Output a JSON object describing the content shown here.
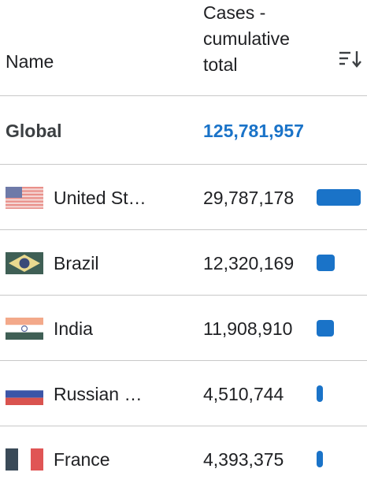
{
  "header": {
    "name_label": "Name",
    "cases_label_line1": "Cases -",
    "cases_label_line2": "cumulative",
    "cases_label_line3": "total",
    "sort_icon": "sort-descending-icon"
  },
  "global": {
    "label": "Global",
    "value": "125,781,957"
  },
  "accent_color": "#1a73c8",
  "rows": [
    {
      "name": "United St…",
      "value": "29,787,178",
      "raw": 29787178,
      "flag_icon": "flag-united-states-icon"
    },
    {
      "name": "Brazil",
      "value": "12,320,169",
      "raw": 12320169,
      "flag_icon": "flag-brazil-icon"
    },
    {
      "name": "India",
      "value": "11,908,910",
      "raw": 11908910,
      "flag_icon": "flag-india-icon"
    },
    {
      "name": "Russian …",
      "value": "4,510,744",
      "raw": 4510744,
      "flag_icon": "flag-russia-icon"
    },
    {
      "name": "France",
      "value": "4,393,375",
      "raw": 4393375,
      "flag_icon": "flag-france-icon"
    }
  ]
}
